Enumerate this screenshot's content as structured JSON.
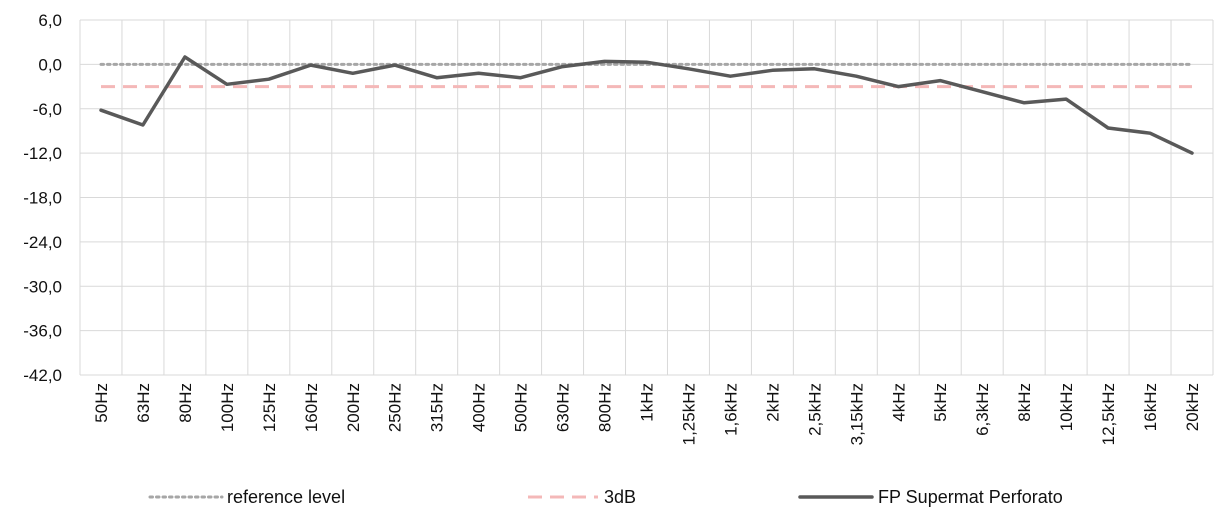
{
  "chart_data": {
    "type": "line",
    "title": "",
    "xlabel": "",
    "ylabel": "",
    "ylim": [
      -42,
      6
    ],
    "yticks": [
      "6,0",
      "0,0",
      "-6,0",
      "-12,0",
      "-18,0",
      "-24,0",
      "-30,0",
      "-36,0",
      "-42,0"
    ],
    "ytick_values": [
      6,
      0,
      -6,
      -12,
      -18,
      -24,
      -30,
      -36,
      -42
    ],
    "grid": true,
    "legend_position": "bottom",
    "categories": [
      "50Hz",
      "63Hz",
      "80Hz",
      "100Hz",
      "125Hz",
      "160Hz",
      "200Hz",
      "250Hz",
      "315Hz",
      "400Hz",
      "500Hz",
      "630Hz",
      "800Hz",
      "1kHz",
      "1,25kHz",
      "1,6kHz",
      "2kHz",
      "2,5kHz",
      "3,15kHz",
      "4kHz",
      "5kHz",
      "6,3kHz",
      "8kHz",
      "10kHz",
      "12,5kHz",
      "16kHz",
      "20kHz"
    ],
    "series": [
      {
        "name": "reference level",
        "color": "#a6a6a6",
        "style": "dotted",
        "values": [
          0,
          0,
          0,
          0,
          0,
          0,
          0,
          0,
          0,
          0,
          0,
          0,
          0,
          0,
          0,
          0,
          0,
          0,
          0,
          0,
          0,
          0,
          0,
          0,
          0,
          0,
          0
        ]
      },
      {
        "name": "3dB",
        "color": "#f4b8b8",
        "style": "dashed",
        "values": [
          -3,
          -3,
          -3,
          -3,
          -3,
          -3,
          -3,
          -3,
          -3,
          -3,
          -3,
          -3,
          -3,
          -3,
          -3,
          -3,
          -3,
          -3,
          -3,
          -3,
          -3,
          -3,
          -3,
          -3,
          -3,
          -3,
          -3
        ]
      },
      {
        "name": "FP Supermat Perforato",
        "color": "#595959",
        "style": "solid",
        "values": [
          -6.2,
          -8.2,
          1.0,
          -2.7,
          -2.0,
          -0.1,
          -1.2,
          -0.1,
          -1.8,
          -1.2,
          -1.8,
          -0.3,
          0.4,
          0.3,
          -0.6,
          -1.6,
          -0.8,
          -0.6,
          -1.6,
          -3.0,
          -2.2,
          -3.7,
          -5.2,
          -4.7,
          -8.6,
          -9.3,
          -12.0
        ]
      }
    ]
  }
}
